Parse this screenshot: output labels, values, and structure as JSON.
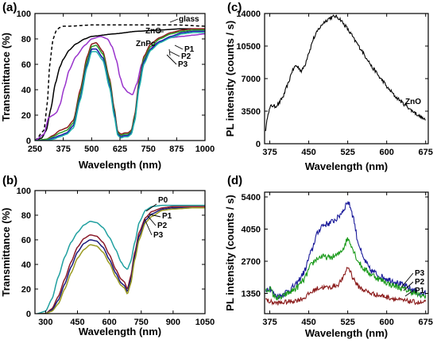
{
  "chart_data": [
    {
      "panel": "(a)",
      "type": "line",
      "xlabel": "Wavelength  (nm)",
      "ylabel": "Transmittance  (%)",
      "xlim": [
        250,
        1000
      ],
      "ylim": [
        0,
        100
      ],
      "xticks": [
        250,
        375,
        500,
        625,
        750,
        875,
        1000
      ],
      "yticks": [
        0,
        20,
        40,
        60,
        80,
        100
      ],
      "annotations": [
        "glass",
        "ZnO",
        "ZnPc",
        "P1",
        "P2",
        "P3"
      ],
      "series": [
        {
          "name": "glass",
          "color": "#000000",
          "dash": "dashed",
          "x": [
            250,
            290,
            305,
            315,
            330,
            345,
            360,
            375,
            400,
            500,
            750,
            875,
            1000
          ],
          "y": [
            0,
            8,
            30,
            60,
            80,
            87,
            89,
            90,
            90,
            91,
            91,
            91,
            90
          ]
        },
        {
          "name": "ZnO",
          "color": "#000000",
          "dash": "solid",
          "x": [
            250,
            280,
            300,
            320,
            340,
            360,
            375,
            400,
            430,
            470,
            500,
            600,
            700,
            800,
            900,
            1000
          ],
          "y": [
            0,
            2,
            8,
            25,
            45,
            58,
            64,
            71,
            76,
            80,
            82,
            84,
            86,
            87,
            88,
            88
          ]
        },
        {
          "name": "ZnPc",
          "color": "#9933cc",
          "dash": "solid",
          "x": [
            250,
            290,
            310,
            330,
            345,
            360,
            380,
            400,
            430,
            470,
            500,
            540,
            570,
            590,
            610,
            625,
            640,
            660,
            680,
            700,
            720,
            750,
            780,
            800,
            850,
            900,
            950,
            1000
          ],
          "y": [
            0,
            5,
            18,
            20,
            22,
            28,
            42,
            55,
            66,
            75,
            80,
            82,
            80,
            74,
            63,
            50,
            42,
            38,
            36,
            45,
            60,
            70,
            76,
            78,
            81,
            82,
            83,
            84
          ]
        },
        {
          "name": "P1",
          "color": "#8b1a1a",
          "dash": "solid",
          "x": [
            250,
            300,
            330,
            360,
            390,
            420,
            450,
            480,
            500,
            520,
            550,
            580,
            600,
            615,
            630,
            645,
            660,
            675,
            690,
            710,
            730,
            760,
            800,
            850,
            900,
            950,
            1000
          ],
          "y": [
            0,
            1,
            4,
            8,
            10,
            16,
            40,
            66,
            76,
            77,
            70,
            48,
            25,
            7,
            5,
            6,
            6,
            8,
            20,
            48,
            66,
            76,
            81,
            85,
            87,
            88,
            88
          ]
        },
        {
          "name": "P2",
          "color": "#2a9d2a",
          "dash": "solid",
          "x": [
            250,
            300,
            330,
            360,
            390,
            420,
            450,
            480,
            500,
            520,
            550,
            580,
            600,
            615,
            630,
            645,
            660,
            675,
            690,
            710,
            730,
            760,
            800,
            850,
            900,
            950,
            1000
          ],
          "y": [
            0,
            1,
            3,
            6,
            8,
            14,
            37,
            63,
            74,
            75,
            68,
            46,
            23,
            6,
            4,
            5,
            5,
            7,
            18,
            46,
            64,
            74,
            80,
            84,
            86,
            87,
            87
          ]
        },
        {
          "name": "P3",
          "color": "#1a1aaa",
          "dash": "solid",
          "x": [
            250,
            300,
            330,
            360,
            390,
            420,
            450,
            480,
            500,
            520,
            550,
            580,
            600,
            615,
            630,
            645,
            660,
            675,
            690,
            710,
            730,
            760,
            800,
            850,
            900,
            950,
            1000
          ],
          "y": [
            0,
            0,
            2,
            4,
            6,
            12,
            34,
            60,
            72,
            72,
            65,
            43,
            21,
            5,
            3,
            4,
            4,
            6,
            16,
            44,
            62,
            72,
            78,
            82,
            85,
            86,
            86
          ]
        },
        {
          "name": "cyan",
          "color": "#20b2aa",
          "dash": "solid",
          "x": [
            250,
            300,
            330,
            360,
            390,
            420,
            450,
            480,
            500,
            520,
            550,
            580,
            600,
            615,
            630,
            645,
            660,
            675,
            690,
            710,
            730,
            760,
            800,
            850,
            900,
            950,
            1000
          ],
          "y": [
            0,
            0,
            1,
            3,
            5,
            10,
            32,
            58,
            70,
            70,
            63,
            41,
            19,
            4,
            2,
            3,
            3,
            5,
            15,
            42,
            60,
            71,
            77,
            81,
            84,
            85,
            85
          ]
        }
      ]
    },
    {
      "panel": "(b)",
      "type": "line",
      "xlabel": "Wavelength  (nm)",
      "ylabel": "Transmittance  (%)",
      "xlim": [
        250,
        1050
      ],
      "ylim": [
        0,
        100
      ],
      "xticks": [
        300,
        450,
        600,
        750,
        900,
        1050
      ],
      "yticks": [
        0,
        20,
        40,
        60,
        80,
        100
      ],
      "annotations": [
        "P0",
        "P1",
        "P2",
        "P3"
      ],
      "series": [
        {
          "name": "P0",
          "color": "#20a0a0",
          "dash": "solid",
          "x": [
            260,
            300,
            330,
            360,
            390,
            420,
            450,
            480,
            510,
            540,
            570,
            600,
            630,
            655,
            670,
            685,
            700,
            720,
            740,
            770,
            800,
            850,
            900,
            1000,
            1050
          ],
          "y": [
            0,
            2,
            12,
            30,
            46,
            58,
            66,
            72,
            75,
            74,
            70,
            62,
            52,
            42,
            38,
            36,
            42,
            58,
            74,
            84,
            87,
            88,
            88,
            88,
            88
          ]
        },
        {
          "name": "P1",
          "color": "#8b1a2a",
          "dash": "solid",
          "x": [
            270,
            300,
            330,
            360,
            390,
            420,
            450,
            480,
            510,
            540,
            570,
            600,
            630,
            655,
            670,
            685,
            700,
            720,
            740,
            770,
            800,
            850,
            900,
            1000,
            1050
          ],
          "y": [
            0,
            0,
            4,
            14,
            28,
            42,
            54,
            61,
            64,
            63,
            58,
            48,
            36,
            28,
            26,
            20,
            30,
            50,
            66,
            78,
            83,
            86,
            87,
            87,
            87
          ]
        },
        {
          "name": "P2",
          "color": "#1a1a7a",
          "dash": "solid",
          "x": [
            270,
            300,
            330,
            360,
            390,
            420,
            450,
            480,
            510,
            540,
            570,
            600,
            630,
            655,
            670,
            685,
            700,
            720,
            740,
            770,
            800,
            850,
            900,
            1000,
            1050
          ],
          "y": [
            0,
            0,
            3,
            11,
            24,
            38,
            50,
            57,
            60,
            59,
            54,
            44,
            33,
            25,
            23,
            18,
            27,
            47,
            63,
            76,
            81,
            85,
            86,
            86,
            86
          ]
        },
        {
          "name": "P3",
          "color": "#9a9a20",
          "dash": "solid",
          "x": [
            270,
            300,
            330,
            360,
            390,
            420,
            450,
            480,
            510,
            540,
            570,
            600,
            630,
            655,
            670,
            685,
            700,
            720,
            740,
            770,
            800,
            850,
            900,
            1000,
            1050
          ],
          "y": [
            0,
            0,
            2,
            8,
            20,
            33,
            45,
            52,
            56,
            55,
            50,
            41,
            30,
            23,
            21,
            16,
            24,
            44,
            60,
            74,
            79,
            84,
            85,
            86,
            86
          ]
        }
      ]
    },
    {
      "panel": "(c)",
      "type": "line",
      "xlabel": "Wavelength  (nm)",
      "ylabel": "PL  intensity  (counts / s)",
      "xlim": [
        365,
        680
      ],
      "ylim": [
        0,
        14000
      ],
      "xticks": [
        375,
        450,
        525,
        600,
        675
      ],
      "yticks": [
        0,
        3500,
        7000,
        10500,
        14000
      ],
      "annotations": [
        "ZnO"
      ],
      "series": [
        {
          "name": "ZnO",
          "color": "#000000",
          "dash": "solid",
          "noise": 180,
          "x": [
            367,
            372,
            378,
            385,
            392,
            400,
            410,
            418,
            425,
            430,
            436,
            442,
            450,
            460,
            470,
            480,
            490,
            500,
            505,
            510,
            520,
            530,
            540,
            550,
            560,
            575,
            590,
            605,
            620,
            635,
            650,
            665,
            675
          ],
          "y": [
            1500,
            3400,
            4100,
            4000,
            4300,
            5000,
            6400,
            7800,
            8400,
            8200,
            7800,
            8400,
            9800,
            11400,
            12400,
            13100,
            13500,
            13700,
            13600,
            13400,
            12700,
            11900,
            11000,
            10200,
            9300,
            8000,
            6900,
            5800,
            4900,
            4200,
            3500,
            2900,
            2500
          ]
        }
      ]
    },
    {
      "panel": "(d)",
      "type": "line",
      "xlabel": "Wavelength  (nm)",
      "ylabel": "PL  intensity  (counts / s)",
      "xlim": [
        365,
        680
      ],
      "ylim": [
        500,
        5600
      ],
      "xticks": [
        375,
        450,
        525,
        600,
        675
      ],
      "yticks": [
        1350,
        2700,
        4050,
        5400
      ],
      "annotations": [
        "P3",
        "P2",
        "P1"
      ],
      "series": [
        {
          "name": "P3",
          "color": "#1a1a9a",
          "dash": "solid",
          "noise": 130,
          "x": [
            367,
            375,
            385,
            395,
            410,
            425,
            440,
            455,
            465,
            475,
            490,
            505,
            515,
            525,
            530,
            535,
            545,
            555,
            570,
            590,
            610,
            630,
            650,
            665,
            675
          ],
          "y": [
            1500,
            1600,
            1250,
            1250,
            1450,
            1700,
            2200,
            3100,
            3800,
            4200,
            4300,
            4500,
            4800,
            5200,
            5000,
            4600,
            3500,
            2800,
            2300,
            2050,
            1900,
            1700,
            1500,
            1300,
            1350
          ]
        },
        {
          "name": "P2",
          "color": "#1a9a1a",
          "dash": "solid",
          "noise": 120,
          "x": [
            367,
            375,
            385,
            395,
            410,
            425,
            440,
            455,
            465,
            475,
            490,
            505,
            515,
            525,
            530,
            535,
            545,
            555,
            570,
            590,
            610,
            630,
            650,
            665,
            675
          ],
          "y": [
            1450,
            1550,
            1200,
            1150,
            1350,
            1550,
            1900,
            2550,
            2800,
            2900,
            2850,
            2950,
            3200,
            3650,
            3500,
            3200,
            2700,
            2400,
            2150,
            1900,
            1700,
            1550,
            1400,
            1250,
            1250
          ]
        },
        {
          "name": "P1",
          "color": "#8b1a1a",
          "dash": "solid",
          "noise": 100,
          "x": [
            367,
            375,
            385,
            395,
            410,
            425,
            440,
            455,
            465,
            475,
            490,
            505,
            515,
            525,
            530,
            535,
            545,
            555,
            570,
            590,
            610,
            630,
            650,
            665,
            675
          ],
          "y": [
            1100,
            1000,
            950,
            950,
            1000,
            1050,
            1150,
            1400,
            1550,
            1600,
            1600,
            1700,
            1950,
            2450,
            2300,
            2000,
            1650,
            1500,
            1350,
            1250,
            1150,
            1050,
            1000,
            950,
            980
          ]
        }
      ]
    }
  ]
}
